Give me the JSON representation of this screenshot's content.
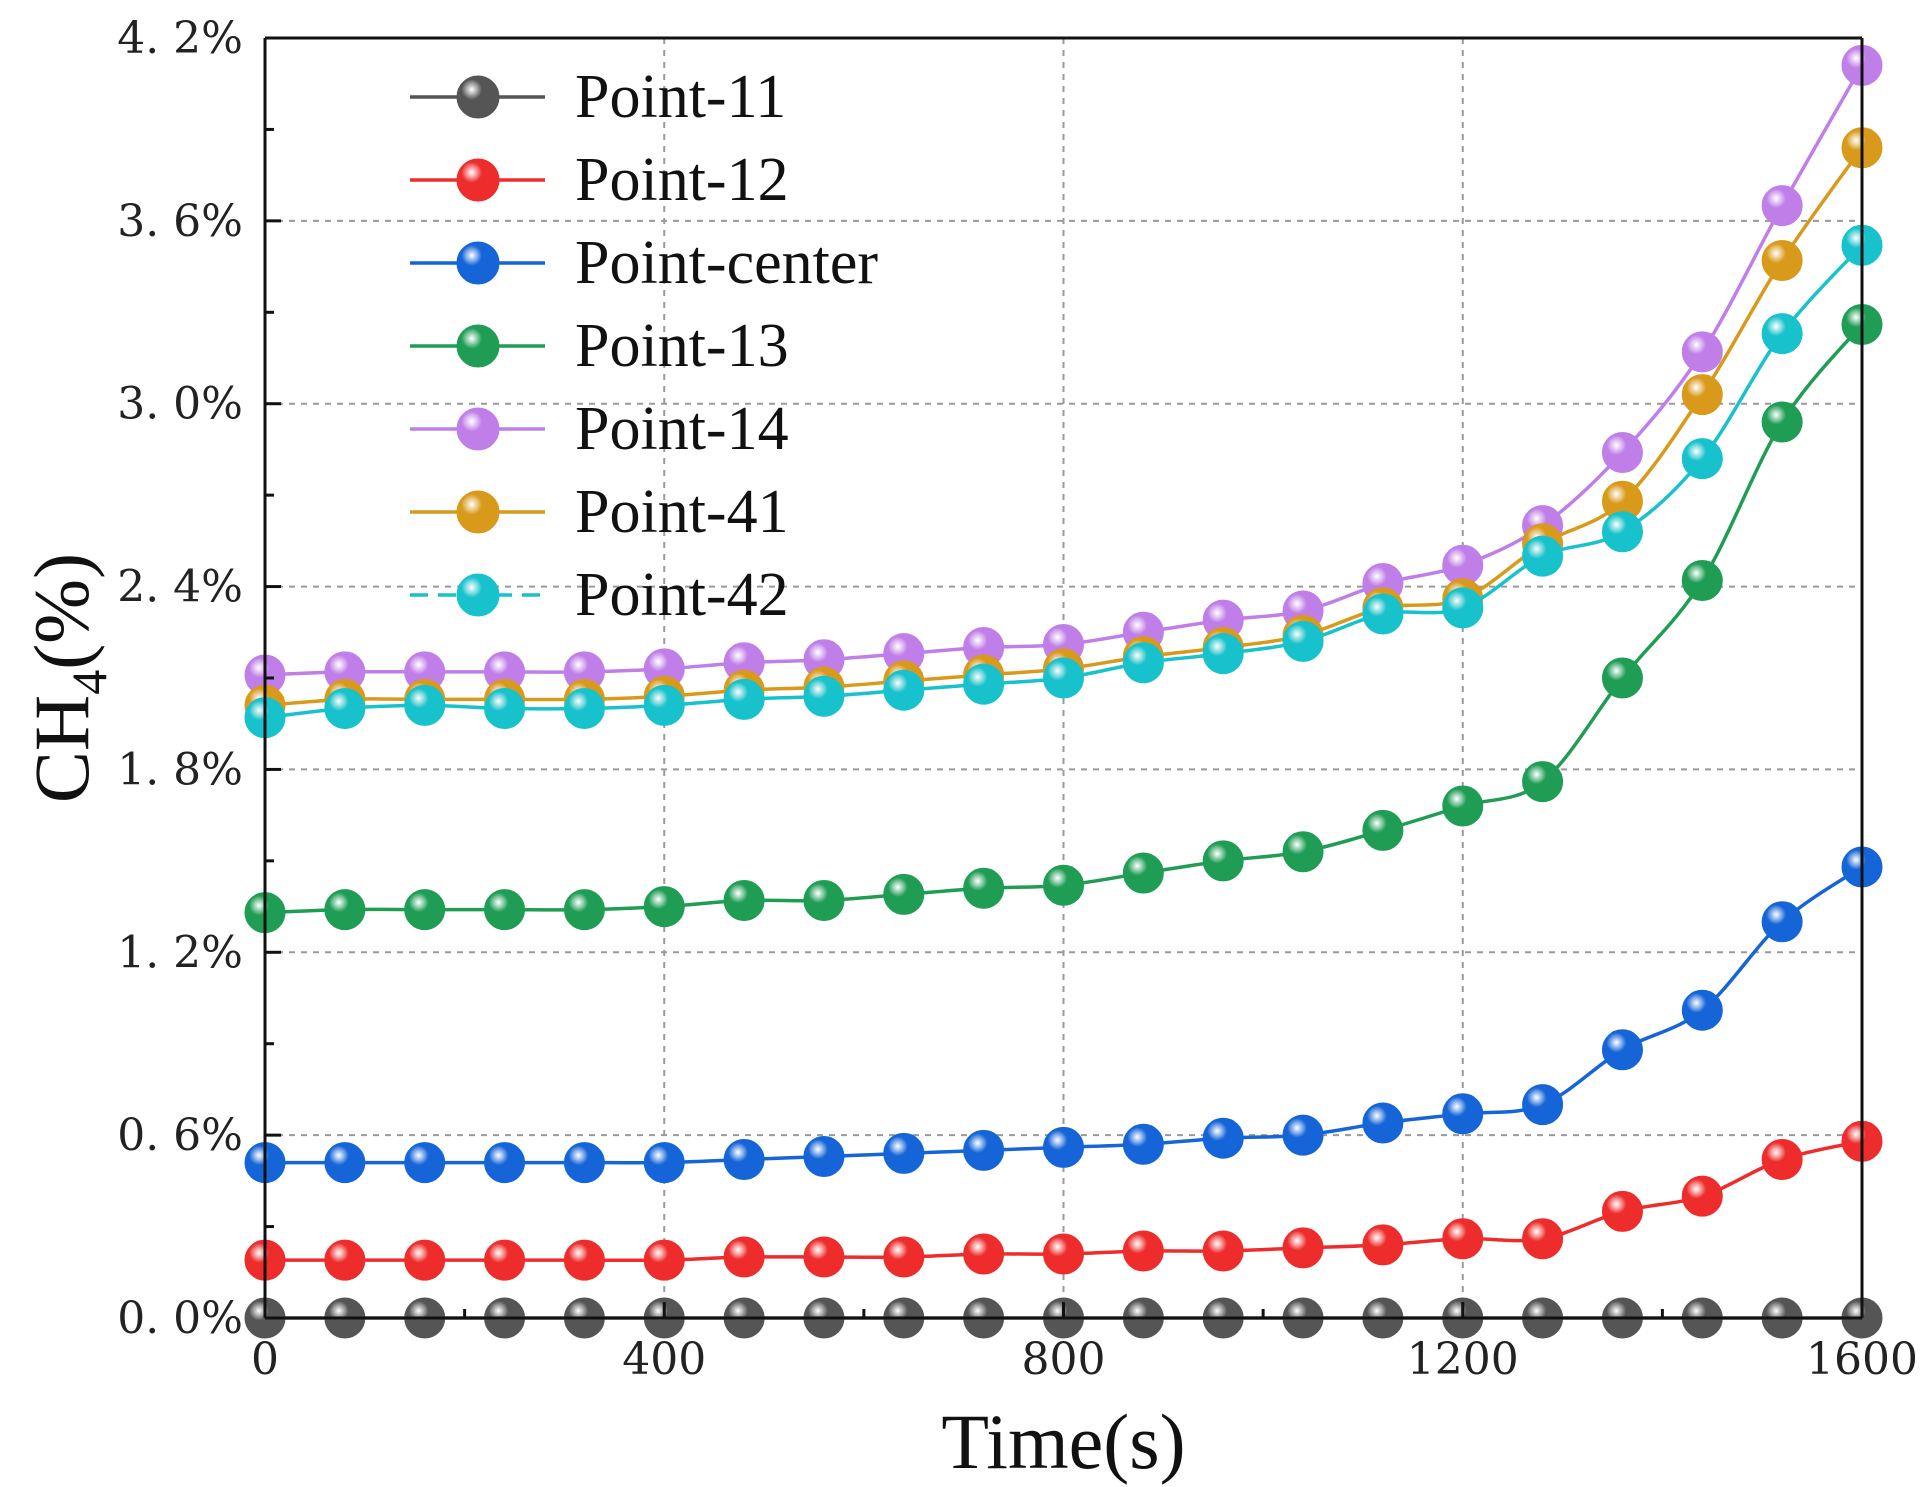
{
  "chart_data": {
    "type": "line",
    "title": "",
    "xlabel": "Time(s)",
    "ylabel_main": "CH",
    "ylabel_sub": "4",
    "ylabel_suffix": "(%)",
    "xlim": [
      0,
      1600
    ],
    "ylim": [
      0,
      4.2
    ],
    "xticks": [
      0,
      400,
      800,
      1200,
      1600
    ],
    "xtick_labels": [
      "0",
      "400",
      "800",
      "1200",
      "1600"
    ],
    "yticks": [
      0,
      0.6,
      1.2,
      1.8,
      2.4,
      3.0,
      3.6,
      4.2
    ],
    "ytick_labels": [
      "0. 0%",
      "0. 6%",
      "1. 2%",
      "1. 8%",
      "2. 4%",
      "3. 0%",
      "3. 6%",
      "4. 2%"
    ],
    "grid": true,
    "legend_position": "top-left",
    "x": [
      0,
      80,
      160,
      240,
      320,
      400,
      480,
      560,
      640,
      720,
      800,
      880,
      960,
      1040,
      1120,
      1200,
      1280,
      1360,
      1440,
      1520,
      1600
    ],
    "series": [
      {
        "name": "Point-11",
        "color": "#555555",
        "dash": "solid",
        "values": [
          0,
          0,
          0,
          0,
          0,
          0,
          0,
          0,
          0,
          0,
          0,
          0,
          0,
          0,
          0,
          0,
          0,
          0,
          0,
          0,
          0
        ]
      },
      {
        "name": "Point-12",
        "color": "#ee2c2c",
        "dash": "solid",
        "values": [
          0.19,
          0.19,
          0.19,
          0.19,
          0.19,
          0.19,
          0.2,
          0.2,
          0.2,
          0.21,
          0.21,
          0.22,
          0.22,
          0.23,
          0.24,
          0.26,
          0.26,
          0.35,
          0.4,
          0.52,
          0.58
        ]
      },
      {
        "name": "Point-center",
        "color": "#1565d8",
        "dash": "solid",
        "values": [
          0.51,
          0.51,
          0.51,
          0.51,
          0.51,
          0.51,
          0.52,
          0.53,
          0.54,
          0.55,
          0.56,
          0.57,
          0.59,
          0.6,
          0.64,
          0.67,
          0.7,
          0.88,
          1.01,
          1.3,
          1.48
        ]
      },
      {
        "name": "Point-13",
        "color": "#1f9d55",
        "dash": "solid",
        "values": [
          1.33,
          1.34,
          1.34,
          1.34,
          1.34,
          1.35,
          1.37,
          1.37,
          1.39,
          1.41,
          1.42,
          1.46,
          1.5,
          1.53,
          1.6,
          1.68,
          1.76,
          2.1,
          2.42,
          2.94,
          3.26
        ]
      },
      {
        "name": "Point-14",
        "color": "#c07ee8",
        "dash": "solid",
        "values": [
          2.11,
          2.12,
          2.12,
          2.12,
          2.12,
          2.13,
          2.15,
          2.16,
          2.18,
          2.2,
          2.21,
          2.25,
          2.29,
          2.32,
          2.41,
          2.47,
          2.6,
          2.84,
          3.17,
          3.65,
          4.11
        ]
      },
      {
        "name": "Point-41",
        "color": "#d99a1b",
        "dash": "solid",
        "values": [
          2.01,
          2.03,
          2.03,
          2.03,
          2.03,
          2.04,
          2.06,
          2.07,
          2.09,
          2.11,
          2.13,
          2.17,
          2.2,
          2.24,
          2.33,
          2.36,
          2.54,
          2.68,
          3.03,
          3.47,
          3.84
        ]
      },
      {
        "name": "Point-42",
        "color": "#17c2cc",
        "dash": "dashed",
        "values": [
          1.97,
          2.0,
          2.01,
          2.0,
          2.0,
          2.01,
          2.03,
          2.04,
          2.06,
          2.08,
          2.1,
          2.15,
          2.18,
          2.22,
          2.31,
          2.33,
          2.5,
          2.58,
          2.82,
          3.23,
          3.52
        ]
      }
    ]
  }
}
